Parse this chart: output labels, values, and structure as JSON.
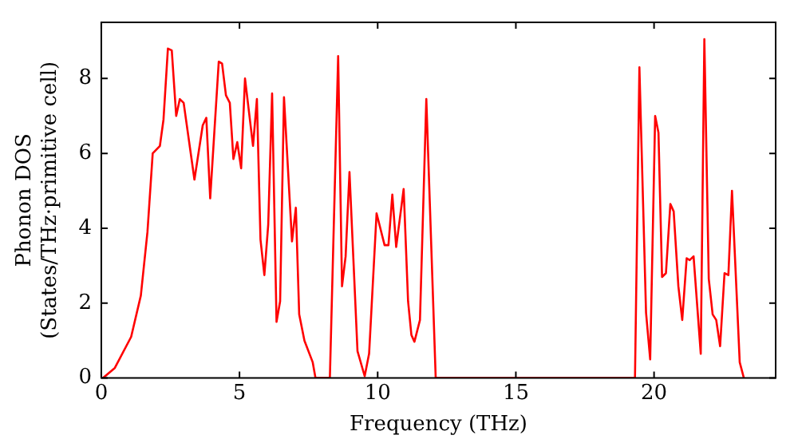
{
  "chart_data": {
    "type": "line",
    "xlabel": "Frequency (THz)",
    "ylabel": "Phonon DOS\n(States/THz·primitive cell)",
    "xlim": [
      0,
      24.4
    ],
    "ylim": [
      0,
      9.5
    ],
    "xticks": [
      0,
      5,
      10,
      15,
      20
    ],
    "yticks": [
      0,
      2,
      4,
      6,
      8
    ],
    "grid": false,
    "legend": false,
    "marker": "none",
    "line_style": "solid",
    "series": [
      {
        "color": "#ff0000",
        "x": [
          0.06,
          0.49,
          1.08,
          1.43,
          1.67,
          1.86,
          2.12,
          2.25,
          2.41,
          2.55,
          2.71,
          2.84,
          2.98,
          3.37,
          3.67,
          3.8,
          3.94,
          4.25,
          4.37,
          4.51,
          4.65,
          4.78,
          4.92,
          5.06,
          5.2,
          5.49,
          5.63,
          5.76,
          5.9,
          6.04,
          6.18,
          6.34,
          6.47,
          6.61,
          6.9,
          7.04,
          7.16,
          7.35,
          7.65,
          7.75,
          8.27,
          8.57,
          8.71,
          8.84,
          8.98,
          9.27,
          9.53,
          9.69,
          9.96,
          10.25,
          10.39,
          10.53,
          10.67,
          10.94,
          11.1,
          11.22,
          11.33,
          11.53,
          11.76,
          12.1,
          19.31,
          19.47,
          19.71,
          19.86,
          20.04,
          20.16,
          20.29,
          20.43,
          20.59,
          20.71,
          20.88,
          21.02,
          21.18,
          21.29,
          21.43,
          21.69,
          21.82,
          21.98,
          22.12,
          22.25,
          22.39,
          22.55,
          22.69,
          22.82,
          23.1,
          23.25
        ],
        "values": [
          0,
          0.27,
          1.1,
          2.2,
          3.9,
          6.0,
          6.2,
          6.9,
          8.8,
          8.75,
          7.0,
          7.45,
          7.35,
          5.3,
          6.75,
          6.95,
          4.8,
          8.45,
          8.4,
          7.55,
          7.35,
          5.85,
          6.3,
          5.6,
          8.0,
          6.2,
          7.45,
          3.7,
          2.75,
          4.1,
          7.6,
          1.5,
          2.05,
          7.5,
          3.65,
          4.55,
          1.7,
          1.0,
          0.42,
          0,
          0,
          8.6,
          2.45,
          3.25,
          5.5,
          0.72,
          0.05,
          0.65,
          4.4,
          3.55,
          3.55,
          4.9,
          3.5,
          5.05,
          2.05,
          1.15,
          0.97,
          1.55,
          7.45,
          0,
          0,
          8.3,
          1.75,
          0.5,
          7.0,
          6.55,
          2.7,
          2.8,
          4.65,
          4.45,
          2.45,
          1.55,
          3.2,
          3.15,
          3.25,
          0.65,
          9.05,
          2.65,
          1.7,
          1.55,
          0.85,
          2.8,
          2.75,
          5.0,
          0.42,
          0
        ]
      }
    ]
  }
}
